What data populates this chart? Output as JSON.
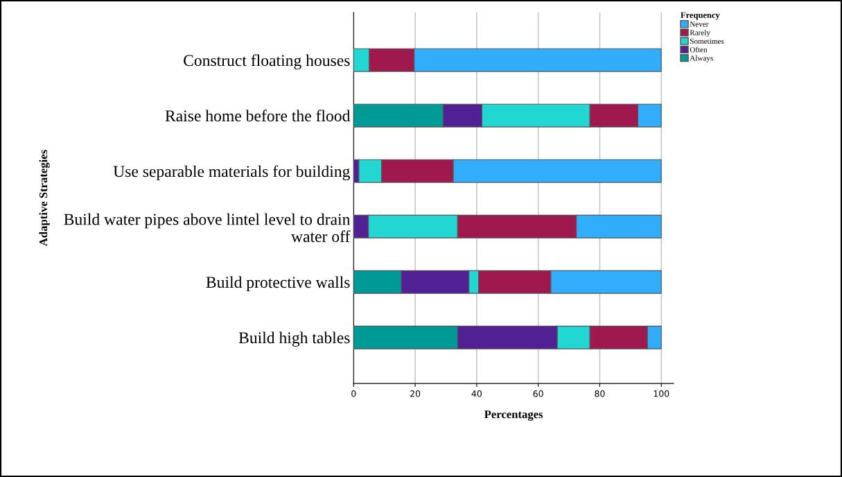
{
  "chart_data": {
    "type": "bar",
    "orientation": "horizontal",
    "stacked": true,
    "ylabel": "Adaptive Strategies",
    "xlabel": "Percentages",
    "legend_title": "Frequency",
    "categories": [
      "Construct floating houses",
      "Raise home before the flood",
      "Use separable materials for building",
      "Build water pipes above lintel level to drain\nwater off",
      "Build protective walls",
      "Build high tables"
    ],
    "series": [
      {
        "name": "Always",
        "color": "#009a96",
        "values": [
          0,
          29.1,
          0,
          0,
          15.5,
          33.8
        ]
      },
      {
        "name": "Often",
        "color": "#502094",
        "values": [
          0,
          12.6,
          1.7,
          4.8,
          22.0,
          32.4
        ]
      },
      {
        "name": "Sometimes",
        "color": "#22d6d2",
        "values": [
          5.1,
          35.1,
          7.4,
          29.0,
          3.1,
          10.6
        ]
      },
      {
        "name": "Rarely",
        "color": "#a0194e",
        "values": [
          14.6,
          15.6,
          23.3,
          38.6,
          23.5,
          18.7
        ]
      },
      {
        "name": "Never",
        "color": "#31adfc",
        "values": [
          80.3,
          7.6,
          67.6,
          27.6,
          35.9,
          4.5
        ]
      }
    ],
    "xlim": [
      0,
      104
    ],
    "xticks": [
      0,
      20,
      40,
      60,
      80,
      100
    ],
    "grid": "x",
    "legend": "top right"
  }
}
